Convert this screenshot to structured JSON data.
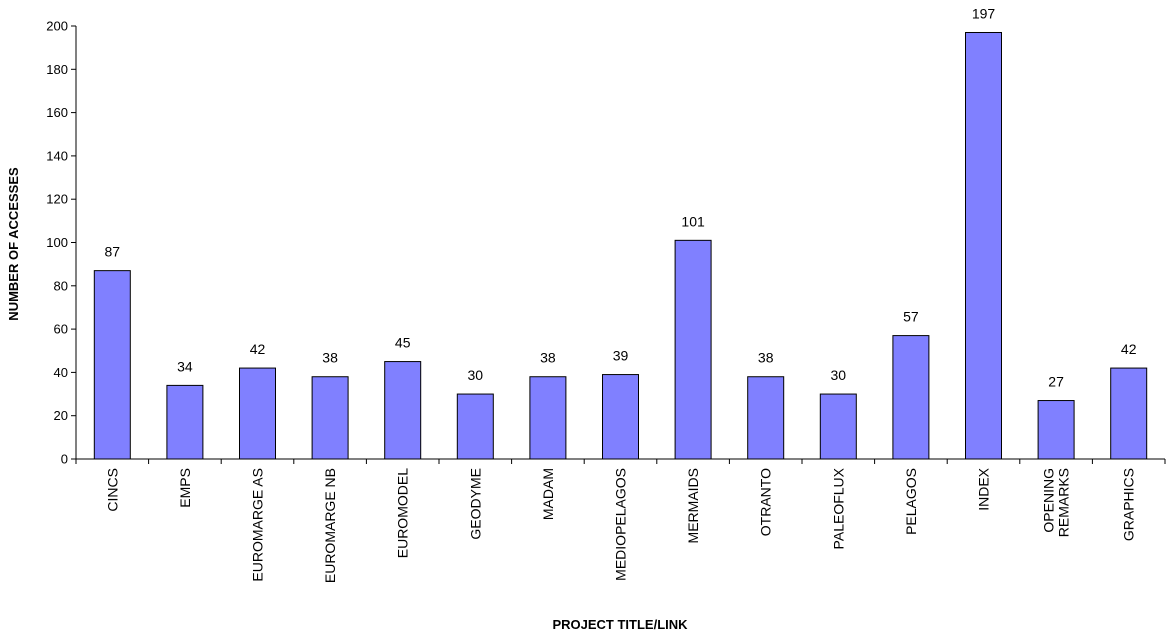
{
  "chart_data": {
    "type": "bar",
    "title": "",
    "xlabel": "PROJECT TITLE/LINK",
    "ylabel": "NUMBER OF ACCESSES",
    "ylim": [
      0,
      200
    ],
    "yticks": [
      0,
      20,
      40,
      60,
      80,
      100,
      120,
      140,
      160,
      180,
      200
    ],
    "grid": false,
    "legend": "none",
    "bar_color": "#8080ff",
    "categories": [
      [
        "CINCS"
      ],
      [
        "EMPS"
      ],
      [
        "EUROMARGE AS"
      ],
      [
        "EUROMARGE NB"
      ],
      [
        "EUROMODEL"
      ],
      [
        "GEODYME"
      ],
      [
        "MADAM"
      ],
      [
        "MEDIOPELAGOS"
      ],
      [
        "MERMAIDS"
      ],
      [
        "OTRANTO"
      ],
      [
        "PALEOFLUX"
      ],
      [
        "PELAGOS"
      ],
      [
        "INDEX"
      ],
      [
        "OPENING",
        "REMARKS"
      ],
      [
        "GRAPHICS"
      ]
    ],
    "values": [
      87,
      34,
      42,
      38,
      45,
      30,
      38,
      39,
      101,
      38,
      30,
      57,
      197,
      27,
      42
    ]
  }
}
